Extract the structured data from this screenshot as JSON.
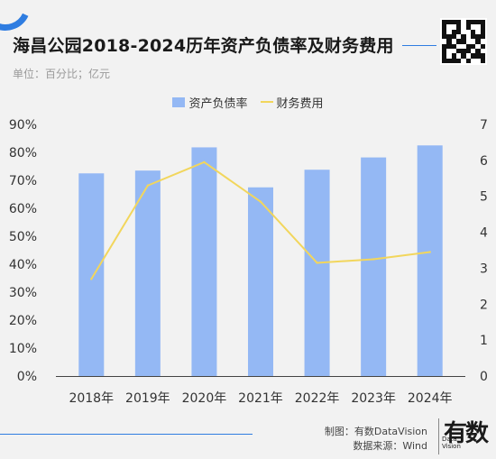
{
  "header": {
    "title": "海昌公园2018-2024历年资产负债率及财务费用",
    "unit": "单位：百分比；亿元"
  },
  "footer": {
    "maker": "制图：有数DataVision",
    "source": "数据来源：Wind",
    "logo_text": "有数",
    "logo_sub": "Data Vision"
  },
  "colors": {
    "bar": "#94b8f4",
    "line": "#f2d65c",
    "accent": "#2f7de1"
  },
  "chart_data": {
    "type": "bar+line",
    "categories": [
      "2018年",
      "2019年",
      "2020年",
      "2021年",
      "2022年",
      "2023年",
      "2024年"
    ],
    "series": [
      {
        "name": "资产负债率",
        "type": "bar",
        "axis": "left",
        "values": [
          72.5,
          73.5,
          81.8,
          67.5,
          73.8,
          78.2,
          82.5
        ]
      },
      {
        "name": "财务费用",
        "type": "line",
        "axis": "right",
        "values": [
          2.7,
          5.3,
          5.95,
          4.85,
          3.15,
          3.25,
          3.45
        ]
      }
    ],
    "y_left": {
      "min": 0,
      "max": 90,
      "ticks": [
        "0%",
        "10%",
        "20%",
        "30%",
        "40%",
        "50%",
        "60%",
        "70%",
        "80%",
        "90%"
      ]
    },
    "y_right": {
      "min": 0,
      "max": 7,
      "ticks": [
        "0",
        "1",
        "2",
        "3",
        "4",
        "5",
        "6",
        "7"
      ]
    },
    "legend": "top-center",
    "grid": false
  }
}
